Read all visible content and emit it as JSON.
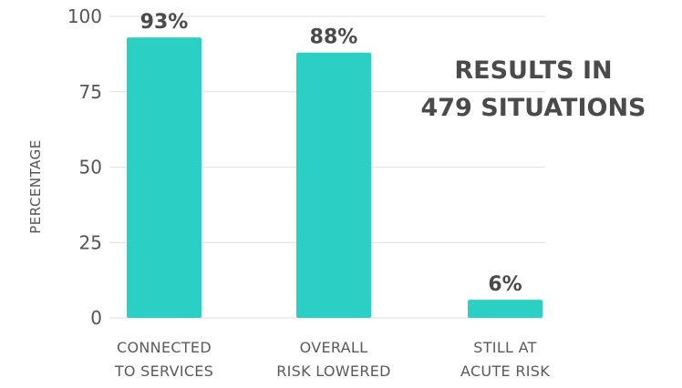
{
  "chart_data": {
    "type": "bar",
    "categories": [
      [
        "CONNECTED",
        "TO SERVICES"
      ],
      [
        "OVERALL",
        "RISK LOWERED"
      ],
      [
        "STILL AT",
        "ACUTE RISK"
      ]
    ],
    "values": [
      93,
      88,
      6
    ],
    "data_labels": [
      "93%",
      "88%",
      "6%"
    ],
    "ylabel": "PERCENTAGE",
    "xlabel": "",
    "ylim": [
      0,
      100
    ],
    "yticks": [
      0,
      25,
      50,
      75,
      100
    ],
    "grid": true,
    "bar_color": "#2ccfc4",
    "annotation": [
      "RESULTS IN",
      "479 SITUATIONS"
    ]
  }
}
